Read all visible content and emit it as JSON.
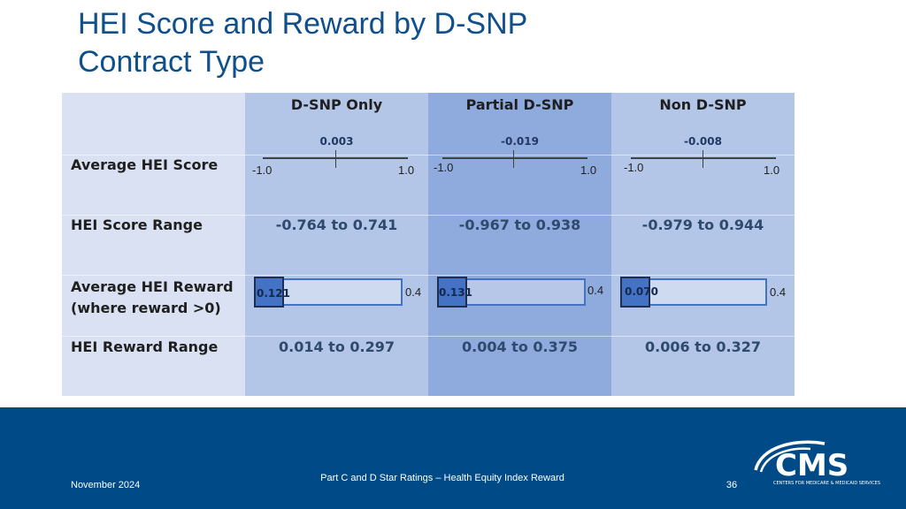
{
  "title": {
    "line1": "HEI Score and Reward by D-SNP",
    "line2": "Contract Type"
  },
  "table": {
    "columns": [
      "D-SNP Only",
      "Partial D-SNP",
      "Non D-SNP"
    ],
    "rows": {
      "avg_score_label": "Average HEI Score",
      "score_range_label": "HEI Score Range",
      "avg_reward_label_1": "Average HEI Reward",
      "avg_reward_label_2": "(where reward >0)",
      "reward_range_label": "HEI Reward Range"
    },
    "score_axis": {
      "min": -1.0,
      "max": 1.0,
      "min_label": "-1.0",
      "max_label": "1.0"
    },
    "reward_axis": {
      "min": 0,
      "max": 0.4,
      "max_label": "0.4"
    },
    "avg_score": [
      "0.003",
      "-0.019",
      "-0.008"
    ],
    "avg_score_values": [
      0.003,
      -0.019,
      -0.008
    ],
    "score_range": [
      "-0.764 to 0.741",
      "-0.967 to 0.938",
      "-0.979 to 0.944"
    ],
    "avg_reward": [
      "0.121",
      "0.131",
      "0.070"
    ],
    "avg_reward_values": [
      0.121,
      0.131,
      0.07
    ],
    "reward_range": [
      "0.014 to 0.297",
      "0.004 to 0.375",
      "0.006 to 0.327"
    ]
  },
  "footer": {
    "date": "November 2024",
    "center": "Part C and D Star Ratings – Health Equity Index Reward",
    "page": "36",
    "logo_text": "CMS",
    "logo_subtext": "CENTERS FOR MEDICARE & MEDICAID SERVICES"
  },
  "colors": {
    "title": "#0f4f8c",
    "footer": "#004b87",
    "bar": "#4472c4"
  }
}
